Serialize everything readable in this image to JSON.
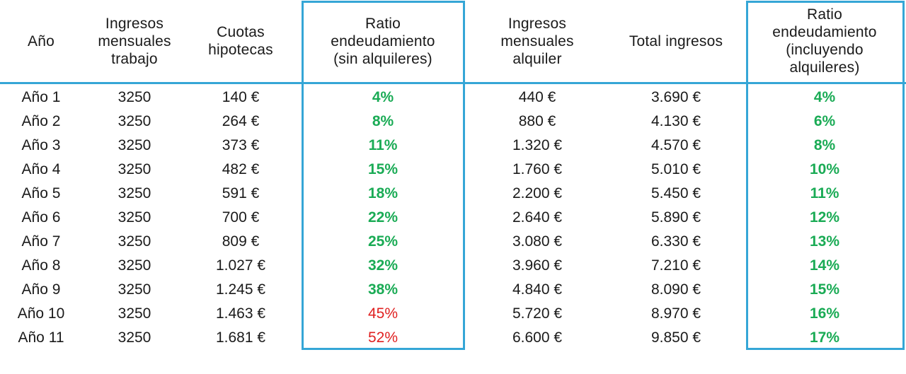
{
  "table": {
    "headers": [
      "Año",
      "Ingresos\nmensuales\ntrabajo",
      "Cuotas\nhipotecas",
      "Ratio\nendeudamiento\n(sin alquileres)",
      "Ingresos\nmensuales\nalquiler",
      "Total ingresos",
      "Ratio\nendeudamiento\n(incluyendo\nalquileres)"
    ],
    "rows": [
      {
        "ano": "Año 1",
        "ingresos_trabajo": "3250",
        "cuotas": "140 €",
        "ratio_sin": "4%",
        "alquiler": "440 €",
        "total": "3.690 €",
        "ratio_con": "4%"
      },
      {
        "ano": "Año 2",
        "ingresos_trabajo": "3250",
        "cuotas": "264 €",
        "ratio_sin": "8%",
        "alquiler": "880 €",
        "total": "4.130 €",
        "ratio_con": "6%"
      },
      {
        "ano": "Año 3",
        "ingresos_trabajo": "3250",
        "cuotas": "373 €",
        "ratio_sin": "11%",
        "alquiler": "1.320 €",
        "total": "4.570 €",
        "ratio_con": "8%"
      },
      {
        "ano": "Año 4",
        "ingresos_trabajo": "3250",
        "cuotas": "482 €",
        "ratio_sin": "15%",
        "alquiler": "1.760 €",
        "total": "5.010 €",
        "ratio_con": "10%"
      },
      {
        "ano": "Año 5",
        "ingresos_trabajo": "3250",
        "cuotas": "591 €",
        "ratio_sin": "18%",
        "alquiler": "2.200 €",
        "total": "5.450 €",
        "ratio_con": "11%"
      },
      {
        "ano": "Año 6",
        "ingresos_trabajo": "3250",
        "cuotas": "700 €",
        "ratio_sin": "22%",
        "alquiler": "2.640 €",
        "total": "5.890 €",
        "ratio_con": "12%"
      },
      {
        "ano": "Año 7",
        "ingresos_trabajo": "3250",
        "cuotas": "809 €",
        "ratio_sin": "25%",
        "alquiler": "3.080 €",
        "total": "6.330 €",
        "ratio_con": "13%"
      },
      {
        "ano": "Año 8",
        "ingresos_trabajo": "3250",
        "cuotas": "1.027 €",
        "ratio_sin": "32%",
        "alquiler": "3.960 €",
        "total": "7.210 €",
        "ratio_con": "14%"
      },
      {
        "ano": "Año 9",
        "ingresos_trabajo": "3250",
        "cuotas": "1.245 €",
        "ratio_sin": "38%",
        "alquiler": "4.840 €",
        "total": "8.090 €",
        "ratio_con": "15%"
      },
      {
        "ano": "Año 10",
        "ingresos_trabajo": "3250",
        "cuotas": "1.463 €",
        "ratio_sin": "45%",
        "alquiler": "5.720 €",
        "total": "8.970 €",
        "ratio_con": "16%"
      },
      {
        "ano": "Año 11",
        "ingresos_trabajo": "3250",
        "cuotas": "1.681 €",
        "ratio_sin": "52%",
        "alquiler": "6.600 €",
        "total": "9.850 €",
        "ratio_con": "17%"
      }
    ],
    "ratio_sin_status": [
      "ok",
      "ok",
      "ok",
      "ok",
      "ok",
      "ok",
      "ok",
      "ok",
      "ok",
      "high",
      "high"
    ],
    "ratio_con_status": [
      "ok",
      "ok",
      "ok",
      "ok",
      "ok",
      "ok",
      "ok",
      "ok",
      "ok",
      "ok",
      "ok"
    ]
  },
  "colors": {
    "ok": "#1aab55",
    "high": "#e02020",
    "accent": "#35a6d6",
    "text": "#1a1a1a"
  }
}
